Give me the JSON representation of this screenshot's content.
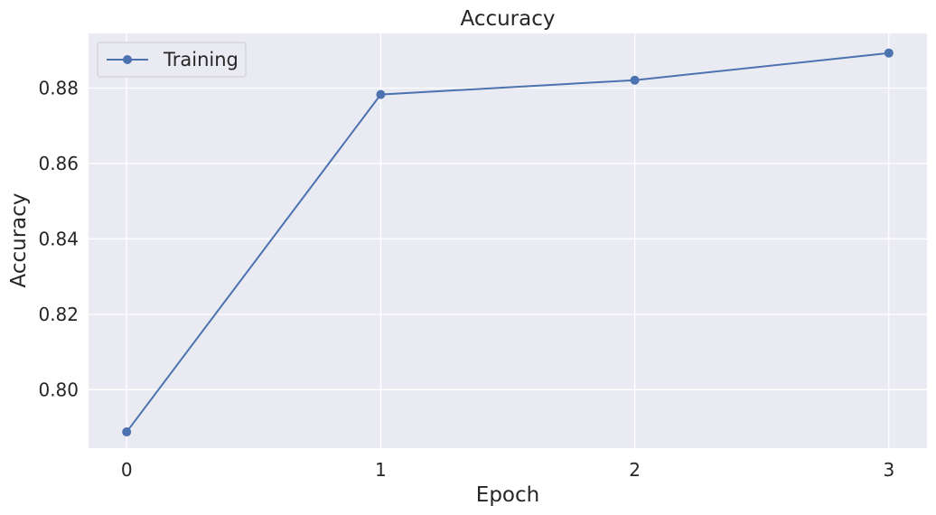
{
  "chart_data": {
    "type": "line",
    "title": "Accuracy",
    "xlabel": "Epoch",
    "ylabel": "Accuracy",
    "x": [
      0,
      1,
      2,
      3
    ],
    "x_ticks": [
      "0",
      "1",
      "2",
      "3"
    ],
    "y_ticks": [
      "0.80",
      "0.82",
      "0.84",
      "0.86",
      "0.88"
    ],
    "xlim": [
      -0.15,
      3.15
    ],
    "ylim": [
      0.7845,
      0.8945
    ],
    "grid": true,
    "legend_position": "top-left",
    "series": [
      {
        "name": "Training",
        "values": [
          0.7888,
          0.8783,
          0.8821,
          0.8893
        ],
        "color": "#4c72b0",
        "marker": "circle"
      }
    ],
    "colors": {
      "background": "#eaeaf2",
      "grid": "#ffffff",
      "text": "#262626"
    }
  }
}
